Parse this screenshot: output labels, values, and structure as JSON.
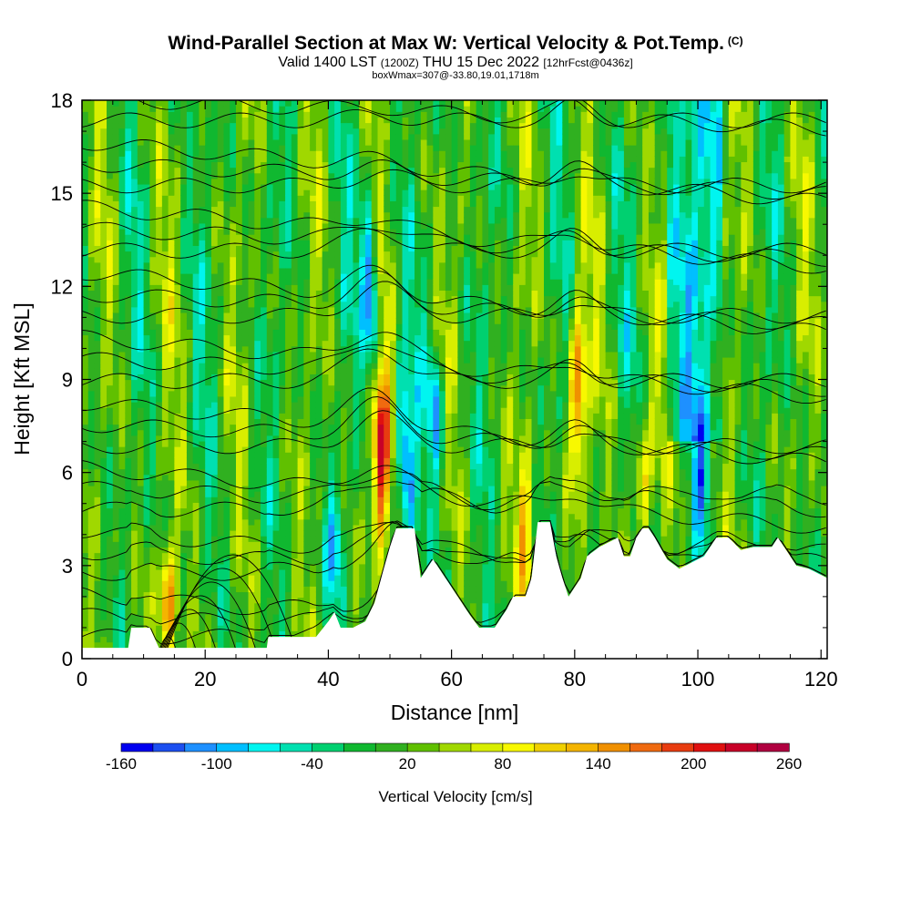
{
  "header": {
    "title": "Wind-Parallel Section at Max W: Vertical Velocity & Pot.Temp.",
    "copyright": "(C)",
    "valid_prefix": "Valid 1400 LST",
    "valid_utc": "(1200Z)",
    "valid_date": "THU 15 Dec 2022",
    "forecast": "[12hrFcst@0436z]",
    "box_info": "boxWmax=307@-33.80,19.01,1718m"
  },
  "colors": {
    "palette": [
      "#0000f0",
      "#1c4ff0",
      "#1e90ff",
      "#00bfff",
      "#00f5f0",
      "#00e0b0",
      "#00d070",
      "#10b830",
      "#30b020",
      "#60c000",
      "#a0d800",
      "#d8ee00",
      "#f8f800",
      "#f0d000",
      "#f4b400",
      "#f09000",
      "#ef6a10",
      "#e83c10",
      "#e01010",
      "#c80028",
      "#b00040"
    ],
    "terrain": "#ffffff",
    "contour": "#000000"
  },
  "chart_data": {
    "type": "heatmap",
    "title": "Wind-Parallel Section at Max W: Vertical Velocity & Pot.Temp.",
    "xlabel": "Distance [nm]",
    "ylabel": "Height [Kft MSL]",
    "xlim": [
      0,
      121
    ],
    "ylim": [
      0,
      18
    ],
    "x_ticks": [
      0,
      20,
      40,
      60,
      80,
      100,
      120
    ],
    "y_ticks": [
      0,
      3,
      6,
      9,
      12,
      15,
      18
    ],
    "colorbar": {
      "label": "Vertical Velocity [cm/s]",
      "min": -160,
      "max": 260,
      "step": 20,
      "tick_values": [
        -160,
        -100,
        -40,
        20,
        80,
        140,
        200,
        260
      ]
    },
    "terrain_height_kft": [
      [
        0,
        0.35
      ],
      [
        7.5,
        0.35
      ],
      [
        8,
        1.0
      ],
      [
        11,
        1.0
      ],
      [
        12.5,
        0.35
      ],
      [
        30,
        0.35
      ],
      [
        30,
        0.7
      ],
      [
        38,
        0.7
      ],
      [
        40,
        1.2
      ],
      [
        41,
        1.5
      ],
      [
        42,
        1.0
      ],
      [
        44,
        1.0
      ],
      [
        46,
        1.2
      ],
      [
        47.5,
        1.8
      ],
      [
        49,
        2.9
      ],
      [
        50,
        3.6
      ],
      [
        51,
        4.2
      ],
      [
        54,
        4.2
      ],
      [
        55,
        2.6
      ],
      [
        57,
        3.2
      ],
      [
        59,
        2.6
      ],
      [
        61,
        2.0
      ],
      [
        63,
        1.4
      ],
      [
        64.5,
        1.0
      ],
      [
        67,
        1.0
      ],
      [
        69,
        1.6
      ],
      [
        70,
        2.0
      ],
      [
        72,
        2.0
      ],
      [
        73,
        2.6
      ],
      [
        74,
        4.4
      ],
      [
        76,
        4.4
      ],
      [
        77,
        3.3
      ],
      [
        78,
        2.6
      ],
      [
        79,
        2.0
      ],
      [
        81,
        2.6
      ],
      [
        82,
        3.3
      ],
      [
        84,
        3.6
      ],
      [
        87,
        3.9
      ],
      [
        88,
        3.3
      ],
      [
        89,
        3.3
      ],
      [
        90,
        3.9
      ],
      [
        91,
        4.2
      ],
      [
        92,
        4.2
      ],
      [
        93,
        3.9
      ],
      [
        95,
        3.2
      ],
      [
        97,
        2.9
      ],
      [
        101,
        3.3
      ],
      [
        103,
        3.9
      ],
      [
        105,
        3.9
      ],
      [
        107,
        3.5
      ],
      [
        109,
        3.6
      ],
      [
        112,
        3.6
      ],
      [
        113,
        3.9
      ],
      [
        114,
        3.6
      ],
      [
        116,
        3.0
      ],
      [
        118,
        2.9
      ],
      [
        121,
        2.6
      ]
    ],
    "updraft_cores": [
      {
        "x": 48.5,
        "ymin": 4.0,
        "ymax": 9.5,
        "value": 220
      },
      {
        "x": 80.5,
        "ymin": 6.0,
        "ymax": 11.0,
        "value": 160
      },
      {
        "x": 14,
        "ymin": 0.4,
        "ymax": 3.5,
        "value": 150
      },
      {
        "x": 72,
        "ymin": 2.0,
        "ymax": 6.0,
        "value": 110
      },
      {
        "x": 91,
        "ymin": 4.2,
        "ymax": 7.0,
        "value": 120
      }
    ],
    "downdraft_cores": [
      {
        "x": 47,
        "ymin": 9.0,
        "ymax": 14.5,
        "value": -150
      },
      {
        "x": 52.5,
        "ymin": 4.2,
        "ymax": 8.5,
        "value": -140
      },
      {
        "x": 57.5,
        "ymin": 6.0,
        "ymax": 10.0,
        "value": -110
      },
      {
        "x": 100.5,
        "ymin": 4.0,
        "ymax": 7.0,
        "value": -100
      },
      {
        "x": 41,
        "ymin": 2.5,
        "ymax": 5.0,
        "value": -100
      }
    ],
    "isentrope_count": 26
  }
}
